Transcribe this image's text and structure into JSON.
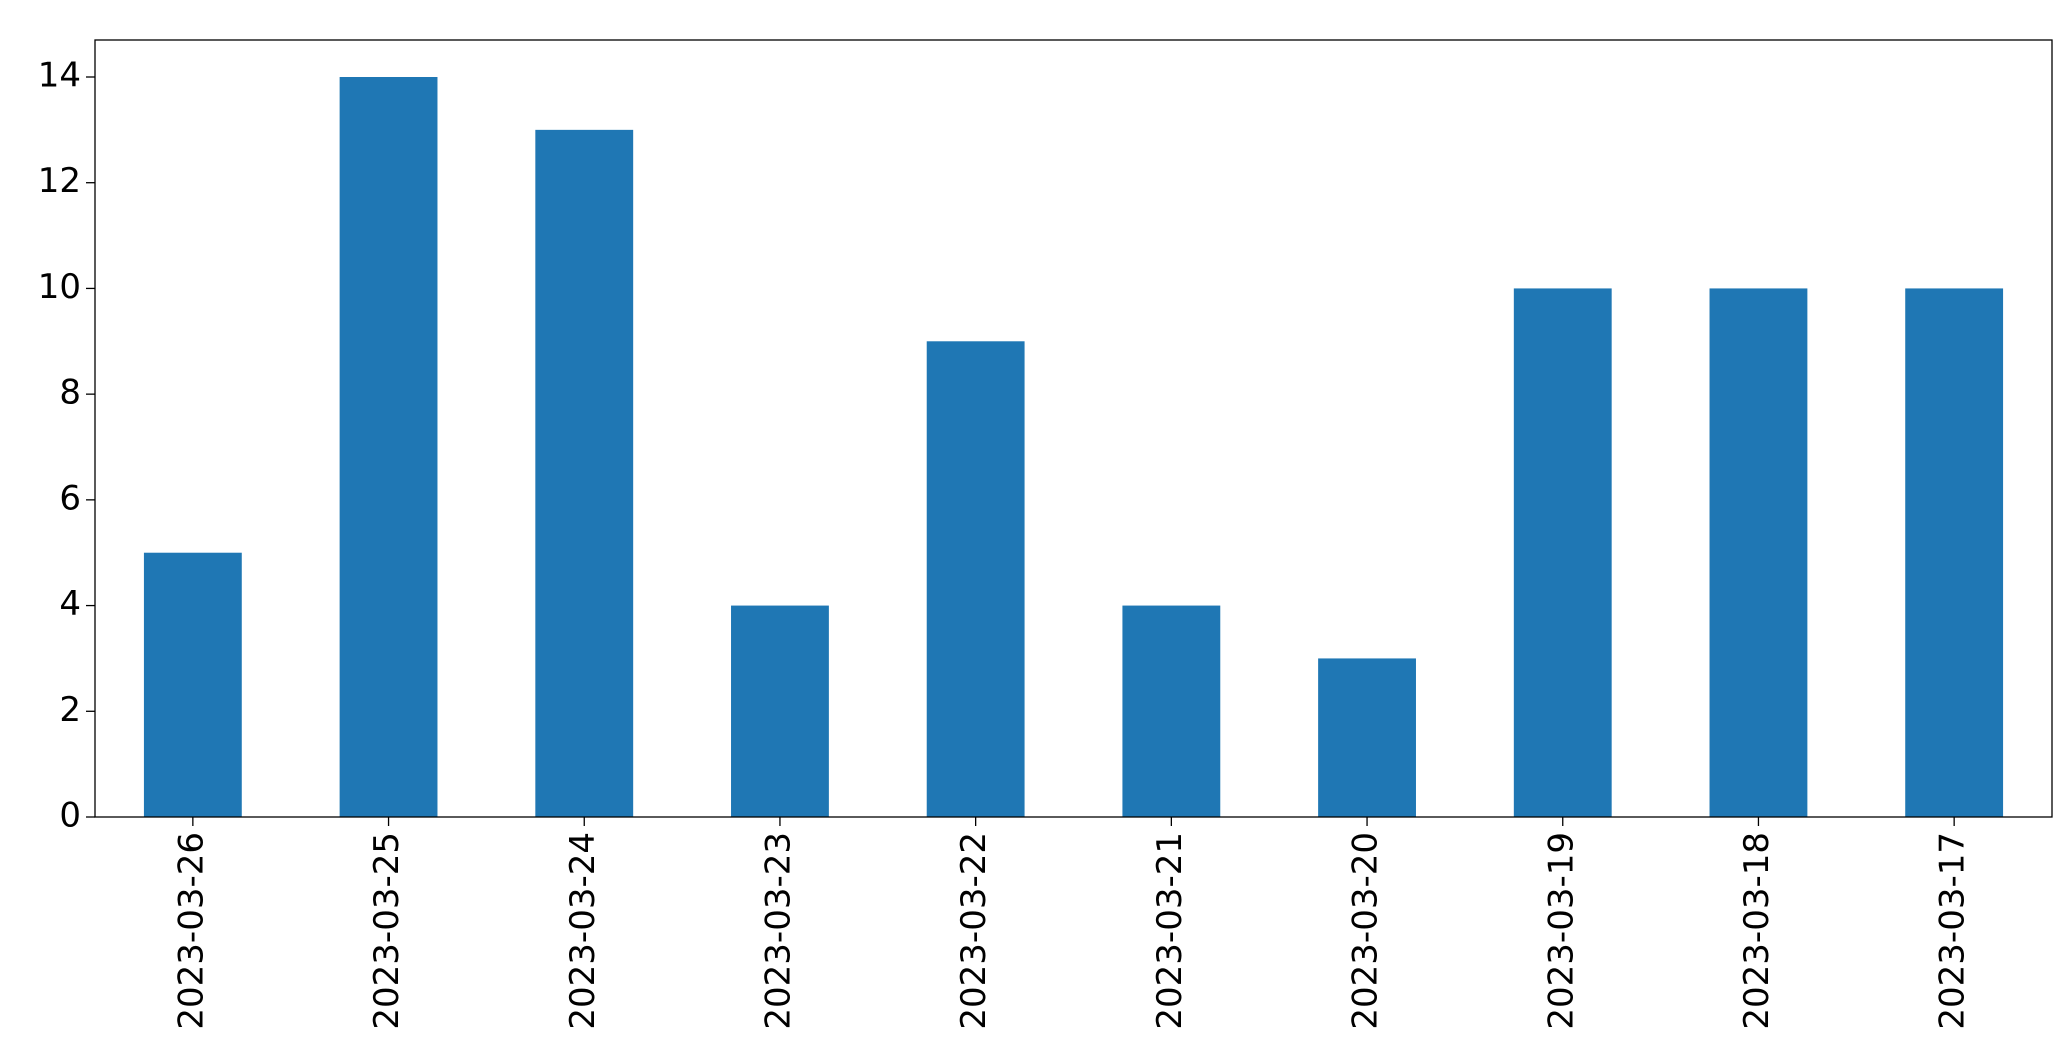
{
  "chart_data": {
    "type": "bar",
    "categories": [
      "2023-03-26",
      "2023-03-25",
      "2023-03-24",
      "2023-03-23",
      "2023-03-22",
      "2023-03-21",
      "2023-03-20",
      "2023-03-19",
      "2023-03-18",
      "2023-03-17"
    ],
    "values": [
      5,
      14,
      13,
      4,
      9,
      4,
      3,
      10,
      10,
      10
    ],
    "color": "#1f77b4",
    "ylim": [
      0,
      14.7
    ],
    "yticks": [
      0,
      2,
      4,
      6,
      8,
      10,
      12,
      14
    ],
    "grid": false
  }
}
